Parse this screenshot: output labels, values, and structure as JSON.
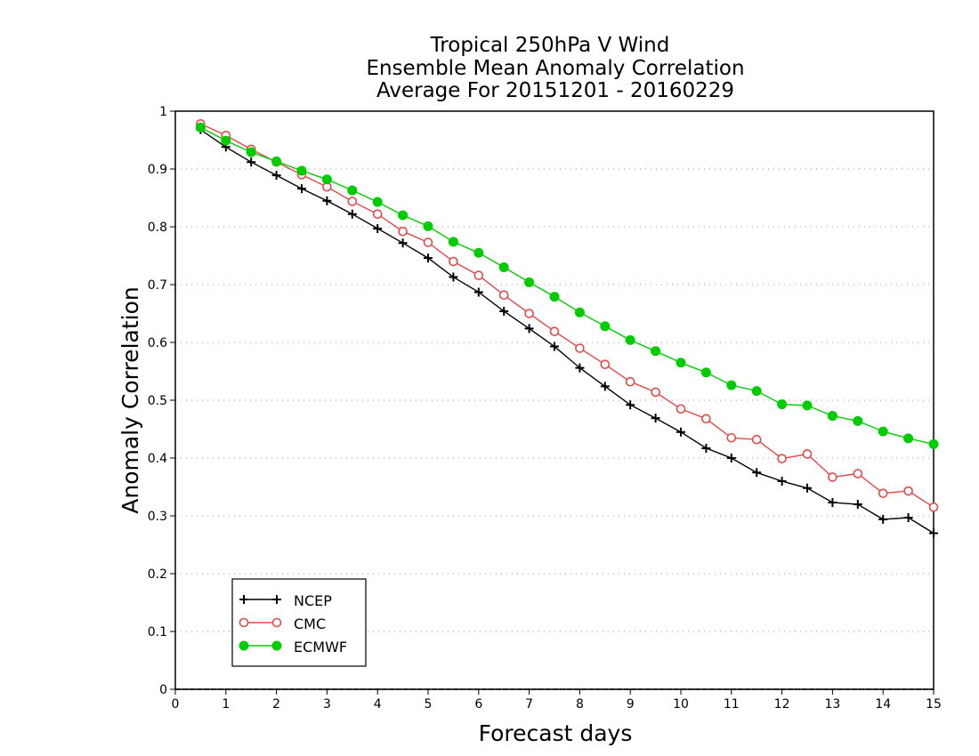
{
  "chart_data": {
    "type": "line",
    "title": [
      "Tropical 250hPa V Wind",
      "Ensemble Mean Anomaly Correlation",
      "Average For 20151201 - 20160229"
    ],
    "xlabel": "Forecast days",
    "ylabel": "Anomaly Correlation",
    "xlim": [
      0,
      15
    ],
    "ylim": [
      0,
      1
    ],
    "xticks": [
      "0",
      "1",
      "2",
      "3",
      "4",
      "5",
      "6",
      "7",
      "8",
      "9",
      "10",
      "11",
      "12",
      "13",
      "14",
      "15"
    ],
    "yticks": [
      "0",
      "0.1",
      "0.2",
      "0.3",
      "0.4",
      "0.5",
      "0.6",
      "0.7",
      "0.8",
      "0.9",
      "1"
    ],
    "grid": "horizontal dotted",
    "legend_position": "bottom-left",
    "x": [
      0.5,
      1,
      1.5,
      2,
      2.5,
      3,
      3.5,
      4,
      4.5,
      5,
      5.5,
      6,
      6.5,
      7,
      7.5,
      8,
      8.5,
      9,
      9.5,
      10,
      10.5,
      11,
      11.5,
      12,
      12.5,
      13,
      13.5,
      14,
      14.5,
      15
    ],
    "series": [
      {
        "name": "NCEP",
        "color": "#000000",
        "marker": "plus",
        "values": [
          0.968,
          0.938,
          0.912,
          0.889,
          0.866,
          0.845,
          0.822,
          0.797,
          0.772,
          0.746,
          0.713,
          0.687,
          0.654,
          0.624,
          0.593,
          0.556,
          0.524,
          0.492,
          0.469,
          0.445,
          0.417,
          0.4,
          0.375,
          0.36,
          0.348,
          0.323,
          0.32,
          0.294,
          0.297,
          0.27
        ]
      },
      {
        "name": "CMC",
        "color": "#e24b4b",
        "marker": "open-circle",
        "values": [
          0.978,
          0.958,
          0.934,
          0.912,
          0.89,
          0.869,
          0.844,
          0.822,
          0.792,
          0.773,
          0.74,
          0.716,
          0.682,
          0.65,
          0.619,
          0.59,
          0.562,
          0.532,
          0.514,
          0.485,
          0.468,
          0.435,
          0.432,
          0.399,
          0.407,
          0.367,
          0.373,
          0.339,
          0.343,
          0.315
        ]
      },
      {
        "name": "ECMWF",
        "color": "#00cc00",
        "marker": "filled-circle",
        "values": [
          0.972,
          0.949,
          0.929,
          0.913,
          0.897,
          0.882,
          0.863,
          0.843,
          0.82,
          0.801,
          0.774,
          0.755,
          0.73,
          0.704,
          0.679,
          0.652,
          0.628,
          0.604,
          0.585,
          0.565,
          0.548,
          0.526,
          0.516,
          0.493,
          0.491,
          0.473,
          0.464,
          0.446,
          0.434,
          0.424
        ]
      }
    ]
  }
}
